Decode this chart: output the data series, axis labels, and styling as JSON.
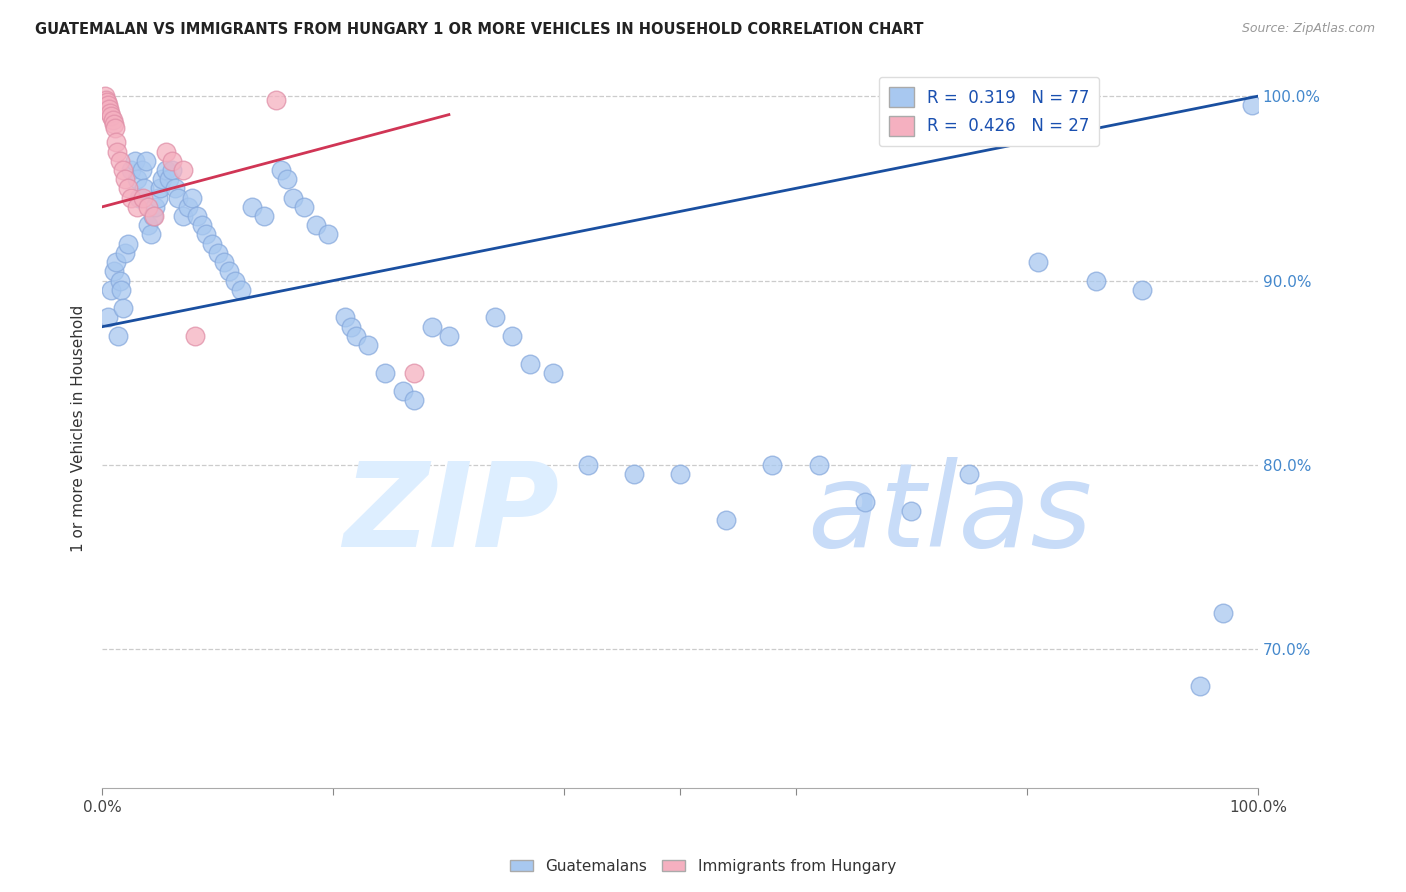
{
  "title": "GUATEMALAN VS IMMIGRANTS FROM HUNGARY 1 OR MORE VEHICLES IN HOUSEHOLD CORRELATION CHART",
  "source": "Source: ZipAtlas.com",
  "ylabel": "1 or more Vehicles in Household",
  "legend_label1": "Guatemalans",
  "legend_label2": "Immigrants from Hungary",
  "R_blue": 0.319,
  "N_blue": 77,
  "R_pink": 0.426,
  "N_pink": 27,
  "blue_fill": "#a8c8f0",
  "blue_edge": "#88aadd",
  "pink_fill": "#f5b0c0",
  "pink_edge": "#e090a8",
  "blue_line": "#1a4fa0",
  "pink_line": "#d03555",
  "right_tick_color": "#4488cc",
  "xlim": [
    0.0,
    1.0
  ],
  "ylim": [
    0.625,
    1.015
  ],
  "yticks": [
    0.7,
    0.8,
    0.9,
    1.0
  ],
  "ytick_labels": [
    "70.0%",
    "80.0%",
    "90.0%",
    "100.0%"
  ],
  "blue_x": [
    0.005,
    0.008,
    0.01,
    0.012,
    0.014,
    0.015,
    0.016,
    0.018,
    0.02,
    0.022,
    0.025,
    0.028,
    0.03,
    0.032,
    0.034,
    0.036,
    0.038,
    0.04,
    0.042,
    0.044,
    0.046,
    0.048,
    0.05,
    0.052,
    0.055,
    0.058,
    0.06,
    0.063,
    0.066,
    0.07,
    0.074,
    0.078,
    0.082,
    0.086,
    0.09,
    0.095,
    0.1,
    0.105,
    0.11,
    0.115,
    0.12,
    0.13,
    0.14,
    0.155,
    0.16,
    0.165,
    0.175,
    0.185,
    0.195,
    0.21,
    0.215,
    0.22,
    0.23,
    0.245,
    0.26,
    0.27,
    0.285,
    0.3,
    0.34,
    0.355,
    0.37,
    0.39,
    0.42,
    0.46,
    0.5,
    0.54,
    0.58,
    0.62,
    0.66,
    0.7,
    0.75,
    0.81,
    0.86,
    0.9,
    0.95,
    0.97,
    0.995
  ],
  "blue_y": [
    0.88,
    0.895,
    0.905,
    0.91,
    0.87,
    0.9,
    0.895,
    0.885,
    0.915,
    0.92,
    0.96,
    0.965,
    0.955,
    0.945,
    0.96,
    0.95,
    0.965,
    0.93,
    0.925,
    0.935,
    0.94,
    0.945,
    0.95,
    0.955,
    0.96,
    0.955,
    0.96,
    0.95,
    0.945,
    0.935,
    0.94,
    0.945,
    0.935,
    0.93,
    0.925,
    0.92,
    0.915,
    0.91,
    0.905,
    0.9,
    0.895,
    0.94,
    0.935,
    0.96,
    0.955,
    0.945,
    0.94,
    0.93,
    0.925,
    0.88,
    0.875,
    0.87,
    0.865,
    0.85,
    0.84,
    0.835,
    0.875,
    0.87,
    0.88,
    0.87,
    0.855,
    0.85,
    0.8,
    0.795,
    0.795,
    0.77,
    0.8,
    0.8,
    0.78,
    0.775,
    0.795,
    0.91,
    0.9,
    0.895,
    0.68,
    0.72,
    0.995
  ],
  "pink_x": [
    0.002,
    0.003,
    0.004,
    0.005,
    0.006,
    0.007,
    0.008,
    0.009,
    0.01,
    0.011,
    0.012,
    0.013,
    0.015,
    0.018,
    0.02,
    0.022,
    0.025,
    0.03,
    0.035,
    0.04,
    0.045,
    0.055,
    0.06,
    0.07,
    0.08,
    0.15,
    0.27
  ],
  "pink_y": [
    1.0,
    0.998,
    0.997,
    0.995,
    0.993,
    0.991,
    0.989,
    0.987,
    0.985,
    0.983,
    0.975,
    0.97,
    0.965,
    0.96,
    0.955,
    0.95,
    0.945,
    0.94,
    0.945,
    0.94,
    0.935,
    0.97,
    0.965,
    0.96,
    0.87,
    0.998,
    0.85
  ],
  "blue_line_x": [
    0.0,
    1.0
  ],
  "blue_line_y": [
    0.875,
    1.0
  ],
  "pink_line_x": [
    0.0,
    0.3
  ],
  "pink_line_y": [
    0.94,
    0.99
  ]
}
